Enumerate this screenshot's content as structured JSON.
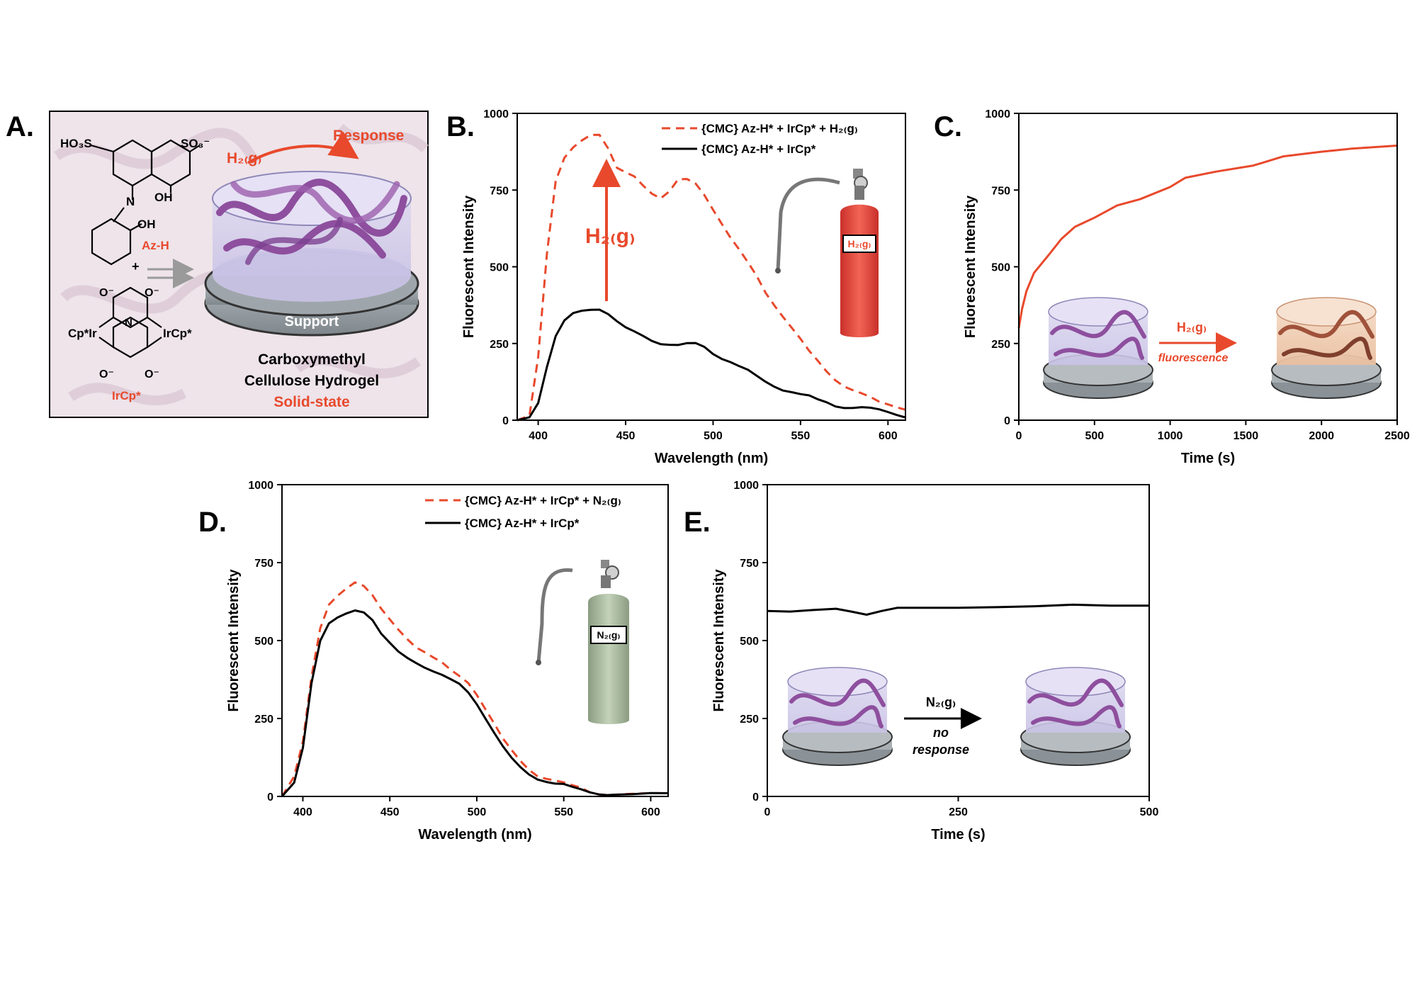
{
  "colors": {
    "accent": "#e8492c",
    "black": "#000000",
    "hydrogel_purple": "#8e4f9e",
    "hydrogel_orange": "#a0523a",
    "tank_red": "#e8473a",
    "tank_green": "#a5b69a",
    "panel_a_bg": "#eadfe6"
  },
  "panel_a": {
    "letter": "A.",
    "labels": {
      "ho3s": "HO₃S",
      "so3": "SO₃⁻",
      "n": "N",
      "oh_1": "OH",
      "oh_2": "OH",
      "azh": "Az-H",
      "plus": "+",
      "o_top_left": "O⁻",
      "o_top_right": "O⁻",
      "o_bottom_left": "O⁻",
      "o_bottom_right": "O⁻",
      "cpir_left": "Cp*Ir",
      "ircp_right": "IrCp*",
      "n_atom": "N",
      "ircp_label": "IrCp*",
      "h2g": "H₂₍g₎",
      "response": "Response",
      "support": "Support",
      "caption_1": "Carboxymethyl",
      "caption_2": "Cellulose Hydrogel",
      "caption_3": "Solid-state"
    }
  },
  "panel_b": {
    "letter": "B.",
    "legend": [
      "{CMC} Az-H* + IrCp* + H₂₍g₎",
      "{CMC} Az-H* + IrCp*"
    ],
    "arrow_label": "H₂₍g₎",
    "tank_label": "H₂₍g₎"
  },
  "panel_c": {
    "letter": "C.",
    "inset_label": "H₂₍g₎",
    "inset_sublabel": "fluorescence"
  },
  "panel_d": {
    "letter": "D.",
    "legend": [
      "{CMC} Az-H* + IrCp* + N₂₍g₎",
      "{CMC} Az-H* + IrCp*"
    ],
    "tank_label": "N₂₍g₎"
  },
  "panel_e": {
    "letter": "E.",
    "inset_label": "N₂₍g₎",
    "inset_sublabel_1": "no",
    "inset_sublabel_2": "response"
  },
  "chart_data": [
    {
      "id": "B",
      "type": "line",
      "xlabel": "Wavelength (nm)",
      "ylabel": "Fluorescent Intensity",
      "xlim": [
        388,
        610
      ],
      "ylim": [
        0,
        1000
      ],
      "xticks": [
        400,
        450,
        500,
        550,
        600
      ],
      "yticks": [
        0,
        250,
        500,
        750,
        1000
      ],
      "series": [
        {
          "name": "{CMC} Az-H* + IrCp* + H₂₍g₎",
          "style": "dashed",
          "color": "#e8492c",
          "x": [
            388,
            395,
            400,
            405,
            410,
            415,
            420,
            425,
            430,
            435,
            440,
            445,
            450,
            455,
            460,
            465,
            470,
            475,
            480,
            485,
            490,
            495,
            500,
            505,
            510,
            515,
            520,
            525,
            530,
            535,
            540,
            545,
            550,
            555,
            560,
            565,
            570,
            575,
            580,
            585,
            590,
            595,
            600,
            605,
            610
          ],
          "y": [
            0,
            10,
            200,
            540,
            780,
            860,
            895,
            915,
            928,
            925,
            880,
            820,
            810,
            800,
            770,
            740,
            720,
            740,
            780,
            785,
            775,
            740,
            690,
            640,
            590,
            550,
            510,
            470,
            420,
            380,
            340,
            300,
            260,
            220,
            190,
            160,
            135,
            115,
            100,
            85,
            70,
            55,
            50,
            45,
            40
          ]
        },
        {
          "name": "{CMC} Az-H* + IrCp*",
          "style": "solid",
          "color": "#000000",
          "x": [
            388,
            395,
            400,
            405,
            410,
            415,
            420,
            425,
            430,
            435,
            440,
            445,
            450,
            455,
            460,
            465,
            470,
            475,
            480,
            485,
            490,
            495,
            500,
            505,
            510,
            515,
            520,
            525,
            530,
            535,
            540,
            545,
            550,
            555,
            560,
            565,
            570,
            575,
            580,
            585,
            590,
            595,
            600,
            605,
            610
          ],
          "y": [
            0,
            5,
            50,
            170,
            275,
            330,
            355,
            360,
            358,
            355,
            340,
            320,
            305,
            295,
            280,
            260,
            245,
            240,
            240,
            250,
            255,
            245,
            220,
            200,
            185,
            170,
            160,
            145,
            130,
            115,
            100,
            90,
            80,
            75,
            65,
            60,
            50,
            45,
            42,
            40,
            35,
            30,
            25,
            20,
            15
          ]
        }
      ]
    },
    {
      "id": "C",
      "type": "line",
      "xlabel": "Time (s)",
      "ylabel": "Fluorescent Intensity",
      "xlim": [
        0,
        2500
      ],
      "ylim": [
        0,
        1000
      ],
      "xticks": [
        0,
        500,
        1000,
        1500,
        2000,
        2500
      ],
      "yticks": [
        0,
        250,
        500,
        750,
        1000
      ],
      "series": [
        {
          "name": "",
          "style": "solid",
          "color": "#e8492c",
          "x": [
            0,
            20,
            50,
            100,
            150,
            200,
            280,
            370,
            500,
            650,
            800,
            1000,
            1100,
            1300,
            1550,
            1750,
            2000,
            2200,
            2500
          ],
          "y": [
            300,
            360,
            420,
            480,
            510,
            540,
            590,
            630,
            660,
            700,
            720,
            760,
            790,
            810,
            830,
            860,
            875,
            885,
            895
          ]
        }
      ]
    },
    {
      "id": "D",
      "type": "line",
      "xlabel": "Wavelength (nm)",
      "ylabel": "Fluorescent Intensity",
      "xlim": [
        388,
        610
      ],
      "ylim": [
        0,
        1000
      ],
      "xticks": [
        400,
        450,
        500,
        550,
        600
      ],
      "yticks": [
        0,
        250,
        500,
        750,
        1000
      ],
      "series": [
        {
          "name": "{CMC} Az-H* + IrCp* + N₂₍g₎",
          "style": "dashed",
          "color": "#e8492c",
          "x": [
            388,
            395,
            400,
            405,
            410,
            415,
            420,
            425,
            430,
            435,
            440,
            445,
            450,
            455,
            460,
            465,
            470,
            475,
            480,
            485,
            490,
            495,
            500,
            505,
            510,
            515,
            520,
            525,
            530,
            535,
            540,
            545,
            550,
            555,
            560,
            565,
            570,
            575,
            580,
            590,
            600,
            610
          ],
          "y": [
            0,
            60,
            170,
            380,
            540,
            620,
            650,
            670,
            685,
            670,
            640,
            600,
            570,
            540,
            510,
            480,
            460,
            440,
            425,
            405,
            390,
            370,
            330,
            280,
            230,
            180,
            145,
            115,
            90,
            70,
            60,
            50,
            40,
            30,
            25,
            15,
            12,
            10,
            8,
            6,
            5,
            5
          ]
        },
        {
          "name": "{CMC} Az-H* + IrCp*",
          "style": "solid",
          "color": "#000000",
          "x": [
            388,
            395,
            400,
            405,
            410,
            415,
            420,
            425,
            430,
            435,
            440,
            445,
            450,
            455,
            460,
            465,
            470,
            475,
            480,
            485,
            490,
            495,
            500,
            505,
            510,
            515,
            520,
            525,
            530,
            535,
            540,
            545,
            550,
            555,
            560,
            565,
            570,
            575,
            580,
            590,
            600,
            610
          ],
          "y": [
            0,
            40,
            150,
            360,
            500,
            560,
            580,
            590,
            595,
            585,
            560,
            520,
            495,
            470,
            450,
            430,
            410,
            395,
            385,
            375,
            365,
            340,
            300,
            250,
            200,
            155,
            120,
            95,
            75,
            60,
            50,
            40,
            35,
            25,
            20,
            15,
            12,
            10,
            8,
            5,
            5,
            5
          ]
        }
      ]
    },
    {
      "id": "E",
      "type": "line",
      "xlabel": "Time (s)",
      "ylabel": "Fluorescent Intensity",
      "xlim": [
        0,
        500
      ],
      "ylim": [
        0,
        1000
      ],
      "xticks": [
        0,
        250,
        500
      ],
      "yticks": [
        0,
        250,
        500,
        750,
        1000
      ],
      "series": [
        {
          "name": "",
          "style": "solid",
          "color": "#000000",
          "x": [
            0,
            30,
            60,
            90,
            110,
            130,
            150,
            170,
            200,
            250,
            300,
            350,
            400,
            450,
            500
          ],
          "y": [
            595,
            593,
            598,
            602,
            593,
            583,
            595,
            605,
            605,
            605,
            607,
            610,
            615,
            612,
            612
          ]
        }
      ]
    }
  ]
}
